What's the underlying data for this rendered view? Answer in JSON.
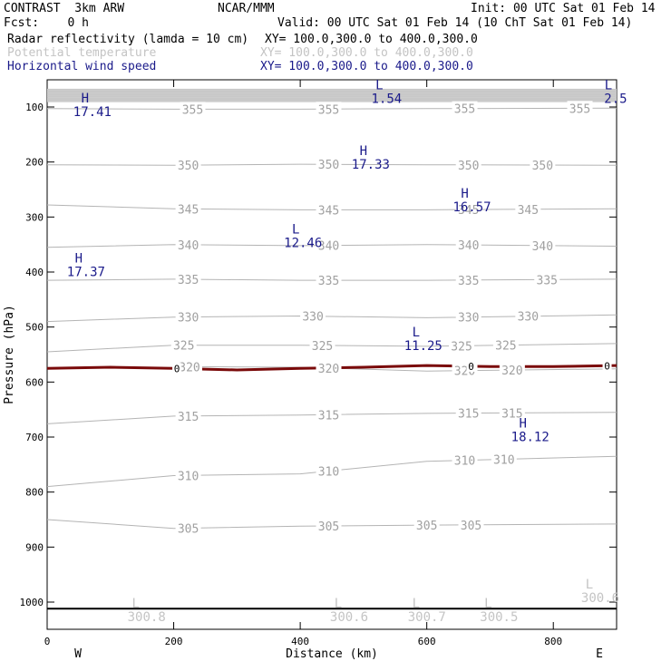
{
  "header": {
    "model": "CONTRAST  3km ARW",
    "org": "NCAR/MMM",
    "init": "Init: 00 UTC Sat 01 Feb 14",
    "fcst": "Fcst:    0 h",
    "valid": "Valid: 00 UTC Sat 01 Feb 14 (10 ChT Sat 01 Feb 14)",
    "fields": [
      {
        "label": "Radar reflectivity (lamda = 10 cm)",
        "xy": "XY= 100.0,300.0 to 400.0,300.0",
        "color": "#000000"
      },
      {
        "label": "Potential temperature",
        "xy": "XY= 100.0,300.0 to 400.0,300.0",
        "color": "#c4c4c4"
      },
      {
        "label": "Horizontal wind speed",
        "xy": "XY= 100.0,300.0 to 400.0,300.0",
        "color": "#1a1a8a"
      }
    ]
  },
  "chart_data": {
    "type": "line",
    "xlabel": "Distance (km)",
    "ylabel": "Pressure (hPa)",
    "xlim": [
      0,
      900
    ],
    "ylim": [
      1050,
      65
    ],
    "x_ticks": [
      0,
      200,
      400,
      600,
      800
    ],
    "y_ticks": [
      100,
      200,
      300,
      400,
      500,
      600,
      700,
      800,
      900,
      1000
    ],
    "left_end_label": "W",
    "right_end_label": "E",
    "colors": {
      "theta": "#b4b4b4",
      "theta_label": "#a0a0a0",
      "wind": "#1a1a8a",
      "refl": "#7a0a0a",
      "surface": "#000000",
      "grid": "#c8c8c8"
    },
    "theta_contours": [
      {
        "value": 355,
        "points": [
          [
            0,
            103
          ],
          [
            200,
            104
          ],
          [
            400,
            104
          ],
          [
            600,
            103
          ],
          [
            900,
            102
          ]
        ],
        "labels": [
          [
            230,
            "355"
          ],
          [
            445,
            "355"
          ],
          [
            660,
            "355"
          ],
          [
            842,
            "355"
          ]
        ]
      },
      {
        "value": 350,
        "points": [
          [
            0,
            205
          ],
          [
            200,
            206
          ],
          [
            400,
            204
          ],
          [
            600,
            205
          ],
          [
            900,
            206
          ]
        ],
        "labels": [
          [
            223,
            "350"
          ],
          [
            445,
            "350"
          ],
          [
            666,
            "350"
          ],
          [
            783,
            "350"
          ]
        ]
      },
      {
        "value": 345,
        "points": [
          [
            0,
            278
          ],
          [
            200,
            285
          ],
          [
            400,
            287
          ],
          [
            600,
            287
          ],
          [
            900,
            285
          ]
        ],
        "labels": [
          [
            223,
            "345"
          ],
          [
            445,
            "345"
          ],
          [
            666,
            "345"
          ],
          [
            760,
            "345"
          ]
        ]
      },
      {
        "value": 340,
        "points": [
          [
            0,
            355
          ],
          [
            200,
            350
          ],
          [
            400,
            352
          ],
          [
            600,
            350
          ],
          [
            900,
            353
          ]
        ],
        "labels": [
          [
            223,
            "340"
          ],
          [
            445,
            "340"
          ],
          [
            666,
            "340"
          ],
          [
            783,
            "340"
          ]
        ]
      },
      {
        "value": 335,
        "points": [
          [
            0,
            415
          ],
          [
            200,
            413
          ],
          [
            400,
            415
          ],
          [
            600,
            415
          ],
          [
            900,
            413
          ]
        ],
        "labels": [
          [
            223,
            "335"
          ],
          [
            445,
            "335"
          ],
          [
            666,
            "335"
          ],
          [
            790,
            "335"
          ]
        ]
      },
      {
        "value": 330,
        "points": [
          [
            0,
            490
          ],
          [
            200,
            482
          ],
          [
            400,
            480
          ],
          [
            600,
            483
          ],
          [
            900,
            478
          ]
        ],
        "labels": [
          [
            223,
            "330"
          ],
          [
            420,
            "330"
          ],
          [
            666,
            "330"
          ],
          [
            760,
            "330"
          ]
        ]
      },
      {
        "value": 325,
        "points": [
          [
            0,
            545
          ],
          [
            200,
            533
          ],
          [
            400,
            533
          ],
          [
            600,
            535
          ],
          [
            900,
            530
          ]
        ],
        "labels": [
          [
            216,
            "325"
          ],
          [
            435,
            "325"
          ],
          [
            655,
            "325"
          ],
          [
            725,
            "325"
          ]
        ]
      },
      {
        "value": 320,
        "points": [
          [
            200,
            572
          ],
          [
            400,
            573
          ],
          [
            600,
            580
          ],
          [
            900,
            576
          ]
        ],
        "labels": [
          [
            225,
            "320"
          ],
          [
            445,
            "320"
          ],
          [
            660,
            "320"
          ],
          [
            735,
            "320"
          ]
        ]
      },
      {
        "value": 315,
        "points": [
          [
            0,
            676
          ],
          [
            200,
            662
          ],
          [
            400,
            660
          ],
          [
            600,
            657
          ],
          [
            900,
            655
          ]
        ],
        "labels": [
          [
            223,
            "315"
          ],
          [
            445,
            "315"
          ],
          [
            666,
            "315"
          ],
          [
            735,
            "315"
          ]
        ]
      },
      {
        "value": 310,
        "points": [
          [
            0,
            790
          ],
          [
            200,
            770
          ],
          [
            400,
            767
          ],
          [
            600,
            744
          ],
          [
            900,
            735
          ]
        ],
        "labels": [
          [
            223,
            "310"
          ],
          [
            445,
            "310"
          ],
          [
            660,
            "310"
          ],
          [
            722,
            "310"
          ]
        ]
      },
      {
        "value": 305,
        "points": [
          [
            0,
            850
          ],
          [
            200,
            866
          ],
          [
            400,
            862
          ],
          [
            600,
            860
          ],
          [
            900,
            858
          ]
        ],
        "labels": [
          [
            223,
            "305"
          ],
          [
            445,
            "305"
          ],
          [
            600,
            "305"
          ],
          [
            670,
            "305"
          ]
        ]
      }
    ],
    "wind_extrema": [
      {
        "kind": "H",
        "x": 60,
        "p": 92,
        "value": "17.41"
      },
      {
        "kind": "L",
        "x": 525,
        "p": 68,
        "value": "1.54"
      },
      {
        "kind": "L",
        "x": 887,
        "p": 68,
        "value": "2.5"
      },
      {
        "kind": "H",
        "x": 500,
        "p": 187,
        "value": "17.33"
      },
      {
        "kind": "H",
        "x": 660,
        "p": 265,
        "value": "16.57"
      },
      {
        "kind": "L",
        "x": 393,
        "p": 330,
        "value": "12.46"
      },
      {
        "kind": "H",
        "x": 50,
        "p": 383,
        "value": "17.37"
      },
      {
        "kind": "L",
        "x": 583,
        "p": 517,
        "value": "11.25"
      },
      {
        "kind": "H",
        "x": 752,
        "p": 683,
        "value": "18.12"
      }
    ],
    "theta_extrema": [
      {
        "kind": "L",
        "x": 140,
        "p": 1020,
        "value": "300.8"
      },
      {
        "kind": "L",
        "x": 460,
        "p": 1020,
        "value": "300.6"
      },
      {
        "kind": "L",
        "x": 583,
        "p": 1020,
        "value": "300.7"
      },
      {
        "kind": "L",
        "x": 697,
        "p": 1020,
        "value": "300.5"
      },
      {
        "kind": "L",
        "x": 857,
        "p": 985,
        "value": "300.6"
      }
    ],
    "reflectivity_contour": {
      "value": "0",
      "points": [
        [
          0,
          575
        ],
        [
          100,
          573
        ],
        [
          200,
          575
        ],
        [
          300,
          578
        ],
        [
          400,
          575
        ],
        [
          500,
          573
        ],
        [
          600,
          570
        ],
        [
          700,
          572
        ],
        [
          800,
          572
        ],
        [
          900,
          570
        ]
      ],
      "labels": [
        [
          205,
          "0"
        ],
        [
          670,
          "0"
        ],
        [
          885,
          "0"
        ]
      ]
    },
    "surface_pressure": 1012,
    "top_band": {
      "from": 68,
      "to": 90,
      "lines": 12
    }
  }
}
